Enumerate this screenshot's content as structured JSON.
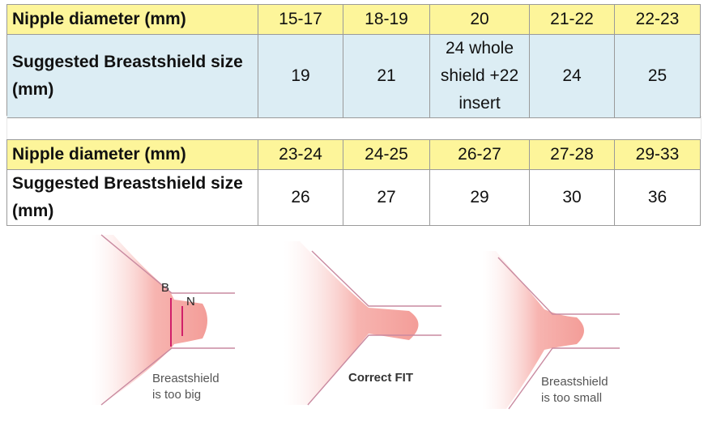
{
  "tables": [
    {
      "rows": [
        [
          "Nipple diameter (mm)",
          "15-17",
          "18-19",
          "20",
          "21-22",
          "22-23"
        ],
        [
          "Suggested Breastshield size (mm)",
          "19",
          "21",
          "24 whole shield +22 insert",
          "24",
          "25"
        ]
      ]
    },
    {
      "rows": [
        [
          "Nipple diameter (mm)",
          "23-24",
          "24-25",
          "26-27",
          "27-28",
          "29-33"
        ],
        [
          "Suggested Breastshield size (mm)",
          "26",
          "27",
          "29",
          "30",
          "36"
        ]
      ]
    }
  ],
  "figures": [
    {
      "labels": [
        "B",
        "N"
      ],
      "caption": [
        "Breastshield",
        "is too big"
      ]
    },
    {
      "caption": [
        "Correct FIT"
      ]
    },
    {
      "caption": [
        "Breastshield",
        "is too small"
      ]
    }
  ]
}
